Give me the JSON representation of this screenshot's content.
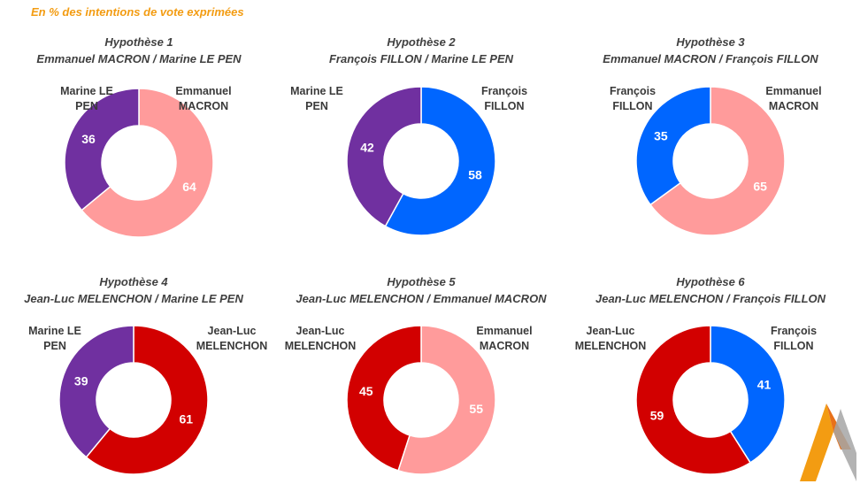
{
  "subtitle": "En % des intentions de vote exprimées",
  "colors": {
    "MACRON": "#FF9B9B",
    "LEPEN": "#7030A0",
    "FILLON": "#0066FF",
    "MELENCHON": "#D20000"
  },
  "chart_data": [
    {
      "type": "pie",
      "title": "Hypothèse 1",
      "subtitle": "Emmanuel MACRON / Marine LE PEN",
      "series": [
        {
          "name": "Emmanuel MACRON",
          "value": 64,
          "color": "#FF9B9B"
        },
        {
          "name": "Marine LE PEN",
          "value": 36,
          "color": "#7030A0"
        }
      ]
    },
    {
      "type": "pie",
      "title": "Hypothèse 2",
      "subtitle": "François FILLON / Marine LE PEN",
      "series": [
        {
          "name": "François FILLON",
          "value": 58,
          "color": "#0066FF"
        },
        {
          "name": "Marine LE PEN",
          "value": 42,
          "color": "#7030A0"
        }
      ]
    },
    {
      "type": "pie",
      "title": "Hypothèse 3",
      "subtitle": "Emmanuel MACRON / François FILLON",
      "series": [
        {
          "name": "Emmanuel MACRON",
          "value": 65,
          "color": "#FF9B9B"
        },
        {
          "name": "François FILLON",
          "value": 35,
          "color": "#0066FF"
        }
      ]
    },
    {
      "type": "pie",
      "title": "Hypothèse 4",
      "subtitle": "Jean-Luc MELENCHON / Marine LE PEN",
      "series": [
        {
          "name": "Jean-Luc MELENCHON",
          "value": 61,
          "color": "#D20000"
        },
        {
          "name": "Marine LE PEN",
          "value": 39,
          "color": "#7030A0"
        }
      ]
    },
    {
      "type": "pie",
      "title": "Hypothèse 5",
      "subtitle": "Jean-Luc MELENCHON / Emmanuel MACRON",
      "series": [
        {
          "name": "Emmanuel MACRON",
          "value": 55,
          "color": "#FF9B9B"
        },
        {
          "name": "Jean-Luc MELENCHON",
          "value": 45,
          "color": "#D20000"
        }
      ]
    },
    {
      "type": "pie",
      "title": "Hypothèse 6",
      "subtitle": "Jean-Luc MELENCHON / François FILLON",
      "series": [
        {
          "name": "François FILLON",
          "value": 41,
          "color": "#0066FF"
        },
        {
          "name": "Jean-Luc MELENCHON",
          "value": 59,
          "color": "#D20000"
        }
      ]
    }
  ]
}
